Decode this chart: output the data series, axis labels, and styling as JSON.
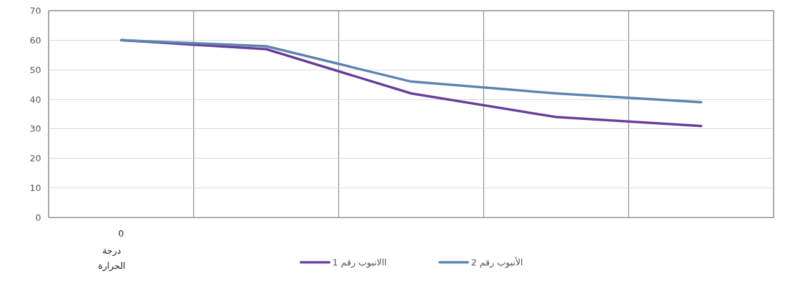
{
  "chart_data": {
    "type": "line",
    "xlabel": "درجة الحرارة",
    "categories": [
      "0",
      null,
      null,
      null,
      null
    ],
    "series": [
      {
        "name": "االانبوب رقم 1",
        "color": "#6a3d9a",
        "values": [
          60,
          57,
          42,
          34,
          31
        ]
      },
      {
        "name": "الأنبوب رقم 2",
        "color": "#5b84b1",
        "values": [
          60,
          58,
          46,
          42,
          39
        ]
      }
    ],
    "ylim": [
      0,
      70
    ],
    "yticks": [
      0,
      10,
      20,
      30,
      40,
      50,
      60,
      70
    ],
    "grid": true,
    "legend": "bottom",
    "marker": "none",
    "line_style": "solid"
  }
}
